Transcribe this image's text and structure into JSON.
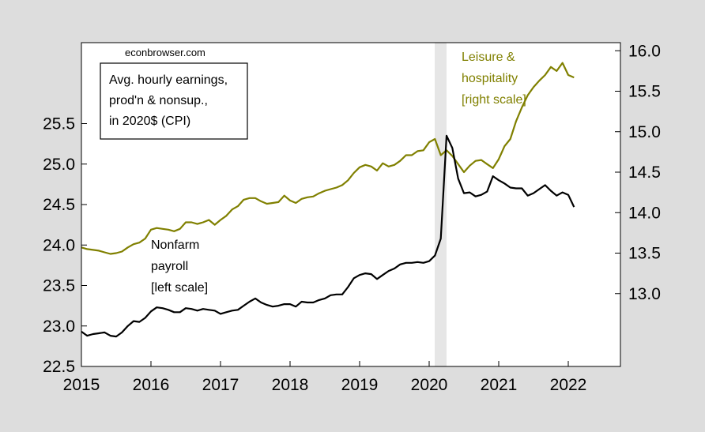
{
  "chart_data": {
    "type": "line",
    "source_label": "econbrowser.com",
    "title_box": [
      "Avg. hourly earnings,",
      "prod'n & nonsup.,",
      "in 2020$ (CPI)"
    ],
    "x_ticks": [
      "2015",
      "2016",
      "2017",
      "2018",
      "2019",
      "2020",
      "2021",
      "2022"
    ],
    "x_range": [
      2015.0,
      2022.75
    ],
    "left_axis": {
      "ticks": [
        "22.5",
        "23.0",
        "23.5",
        "24.0",
        "24.5",
        "25.0",
        "25.5"
      ],
      "range": [
        22.5,
        26.5
      ]
    },
    "right_axis": {
      "ticks": [
        "13.0",
        "13.5",
        "14.0",
        "14.5",
        "15.0",
        "15.5",
        "16.0"
      ],
      "range": [
        12.1,
        16.1
      ]
    },
    "recession": {
      "start": 2020.08,
      "end": 2020.25
    },
    "colors": {
      "nonfarm": "#000000",
      "leisure": "#808000",
      "shade": "#e6e6e6",
      "plot_bg": "#ffffff"
    },
    "series": [
      {
        "name_lines": [
          "Nonfarm",
          "payroll",
          "[left scale]"
        ],
        "axis": "left",
        "x": [
          2015.0,
          2015.083,
          2015.167,
          2015.25,
          2015.333,
          2015.417,
          2015.5,
          2015.583,
          2015.667,
          2015.75,
          2015.833,
          2015.917,
          2016.0,
          2016.083,
          2016.167,
          2016.25,
          2016.333,
          2016.417,
          2016.5,
          2016.583,
          2016.667,
          2016.75,
          2016.833,
          2016.917,
          2017.0,
          2017.083,
          2017.167,
          2017.25,
          2017.333,
          2017.417,
          2017.5,
          2017.583,
          2017.667,
          2017.75,
          2017.833,
          2017.917,
          2018.0,
          2018.083,
          2018.167,
          2018.25,
          2018.333,
          2018.417,
          2018.5,
          2018.583,
          2018.667,
          2018.75,
          2018.833,
          2018.917,
          2019.0,
          2019.083,
          2019.167,
          2019.25,
          2019.333,
          2019.417,
          2019.5,
          2019.583,
          2019.667,
          2019.75,
          2019.833,
          2019.917,
          2020.0,
          2020.083,
          2020.167,
          2020.25,
          2020.333,
          2020.417,
          2020.5,
          2020.583,
          2020.667,
          2020.75,
          2020.833,
          2020.917,
          2021.0,
          2021.083,
          2021.167,
          2021.25,
          2021.333,
          2021.417,
          2021.5,
          2021.583,
          2021.667,
          2021.75,
          2021.833,
          2021.917,
          2022.0,
          2022.083
        ],
        "values": [
          22.93,
          22.88,
          22.9,
          22.91,
          22.92,
          22.88,
          22.87,
          22.92,
          23.0,
          23.06,
          23.05,
          23.1,
          23.18,
          23.23,
          23.22,
          23.2,
          23.17,
          23.17,
          23.22,
          23.21,
          23.19,
          23.21,
          23.2,
          23.19,
          23.15,
          23.17,
          23.19,
          23.2,
          23.25,
          23.3,
          23.34,
          23.29,
          23.26,
          23.24,
          23.25,
          23.27,
          23.27,
          23.24,
          23.3,
          23.29,
          23.29,
          23.32,
          23.34,
          23.38,
          23.39,
          23.39,
          23.48,
          23.59,
          23.63,
          23.65,
          23.64,
          23.58,
          23.63,
          23.68,
          23.71,
          23.76,
          23.78,
          23.78,
          23.79,
          23.78,
          23.8,
          23.87,
          24.08,
          25.35,
          25.2,
          24.82,
          24.64,
          24.65,
          24.6,
          24.62,
          24.66,
          24.85,
          24.8,
          24.76,
          24.71,
          24.7,
          24.7,
          24.61,
          24.64,
          24.69,
          24.74,
          24.67,
          24.61,
          24.65,
          24.62,
          24.47
        ]
      },
      {
        "name_lines": [
          "Leisure &",
          "hospitality",
          "[right scale]"
        ],
        "axis": "right",
        "x": [
          2015.0,
          2015.083,
          2015.167,
          2015.25,
          2015.333,
          2015.417,
          2015.5,
          2015.583,
          2015.667,
          2015.75,
          2015.833,
          2015.917,
          2016.0,
          2016.083,
          2016.167,
          2016.25,
          2016.333,
          2016.417,
          2016.5,
          2016.583,
          2016.667,
          2016.75,
          2016.833,
          2016.917,
          2017.0,
          2017.083,
          2017.167,
          2017.25,
          2017.333,
          2017.417,
          2017.5,
          2017.583,
          2017.667,
          2017.75,
          2017.833,
          2017.917,
          2018.0,
          2018.083,
          2018.167,
          2018.25,
          2018.333,
          2018.417,
          2018.5,
          2018.583,
          2018.667,
          2018.75,
          2018.833,
          2018.917,
          2019.0,
          2019.083,
          2019.167,
          2019.25,
          2019.333,
          2019.417,
          2019.5,
          2019.583,
          2019.667,
          2019.75,
          2019.833,
          2019.917,
          2020.0,
          2020.083,
          2020.167,
          2020.25,
          2020.333,
          2020.417,
          2020.5,
          2020.583,
          2020.667,
          2020.75,
          2020.833,
          2020.917,
          2021.0,
          2021.083,
          2021.167,
          2021.25,
          2021.333,
          2021.417,
          2021.5,
          2021.583,
          2021.667,
          2021.75,
          2021.833,
          2021.917,
          2022.0,
          2022.083
        ],
        "values": [
          13.57,
          13.55,
          13.54,
          13.53,
          13.51,
          13.49,
          13.5,
          13.52,
          13.57,
          13.61,
          13.63,
          13.68,
          13.79,
          13.81,
          13.8,
          13.79,
          13.77,
          13.8,
          13.88,
          13.88,
          13.86,
          13.88,
          13.91,
          13.85,
          13.91,
          13.96,
          14.04,
          14.08,
          14.16,
          14.18,
          14.18,
          14.14,
          14.11,
          14.12,
          14.13,
          14.21,
          14.15,
          14.12,
          14.17,
          14.19,
          14.2,
          14.24,
          14.27,
          14.29,
          14.31,
          14.34,
          14.4,
          14.49,
          14.56,
          14.59,
          14.57,
          14.52,
          14.61,
          14.57,
          14.59,
          14.64,
          14.71,
          14.71,
          14.76,
          14.77,
          14.87,
          14.91,
          14.71,
          14.77,
          14.7,
          14.6,
          14.5,
          14.58,
          14.64,
          14.65,
          14.6,
          14.55,
          14.66,
          14.82,
          14.91,
          15.13,
          15.3,
          15.45,
          15.55,
          15.63,
          15.7,
          15.8,
          15.75,
          15.85,
          15.7,
          15.67
        ]
      }
    ]
  }
}
